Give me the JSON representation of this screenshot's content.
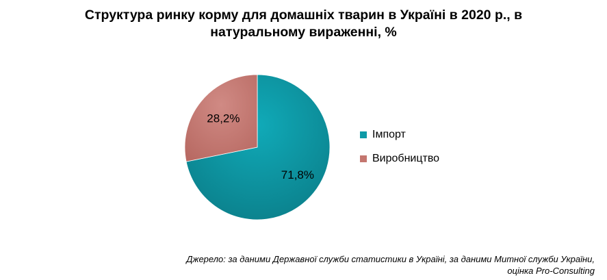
{
  "chart_data": {
    "type": "pie",
    "title_lines": [
      "Структура  ринку  корму  для  домашніх  тварин  в  Україні  в  2020  р.,  в",
      "натуральному  вираженні,  %"
    ],
    "slices": [
      {
        "label": "Імпорт",
        "value": 71.8,
        "value_label": "71,8%",
        "color": "#0e9aa7"
      },
      {
        "label": "Виробництво",
        "value": 28.2,
        "value_label": "28,2%",
        "color": "#c4766f"
      }
    ],
    "legend_position": "right"
  },
  "source": {
    "lines": [
      "Джерело:  за даними Державної служби статистики в Україні, за даними Митної служби України,",
      "оцінка Pro-Consulting"
    ]
  }
}
